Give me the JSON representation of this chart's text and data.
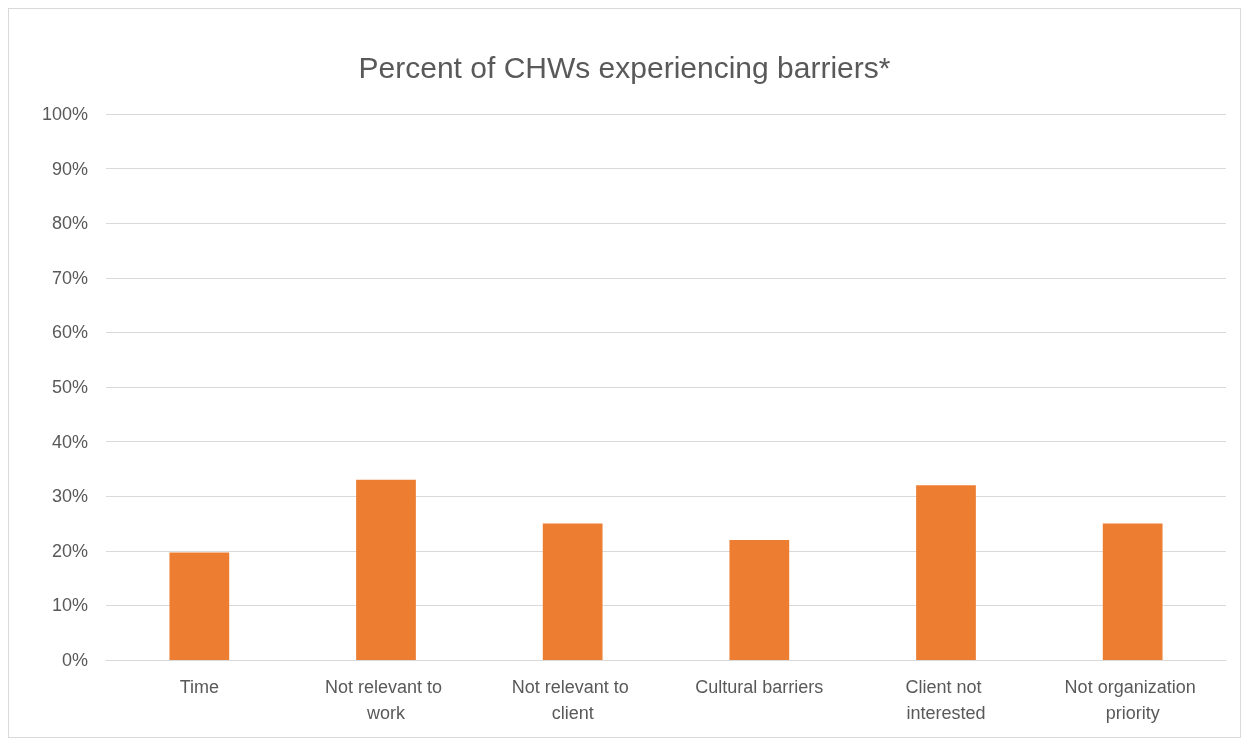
{
  "chart_data": {
    "type": "bar",
    "title": "Percent of CHWs experiencing barriers*",
    "categories": [
      "Time",
      "Not relevant to work",
      "Not relevant to client",
      "Cultural barriers",
      "Client not interested",
      "Not organization priority"
    ],
    "values": [
      19.7,
      33,
      25,
      22,
      32,
      25
    ],
    "color": "#ed7d31",
    "ylim": [
      0,
      100
    ],
    "yticks": [
      {
        "value": 0,
        "label": "0%"
      },
      {
        "value": 10,
        "label": "10%"
      },
      {
        "value": 20,
        "label": "20%"
      },
      {
        "value": 30,
        "label": "30%"
      },
      {
        "value": 40,
        "label": "40%"
      },
      {
        "value": 50,
        "label": "50%"
      },
      {
        "value": 60,
        "label": "60%"
      },
      {
        "value": 70,
        "label": "70%"
      },
      {
        "value": 80,
        "label": "80%"
      },
      {
        "value": 90,
        "label": "90%"
      },
      {
        "value": 100,
        "label": "100%"
      }
    ],
    "grid": "y"
  }
}
